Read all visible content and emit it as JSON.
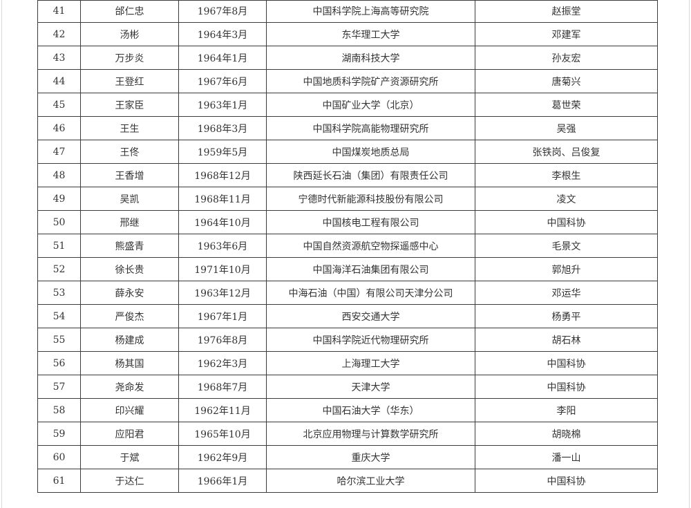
{
  "page": {
    "background": "#ffffff",
    "edge_line_color": "#d9d9d9"
  },
  "table": {
    "border_color": "#3b3b3b",
    "text_color": "#333333",
    "column_keys": [
      "no",
      "name",
      "birth-date",
      "work-unit",
      "nominator"
    ],
    "rows": [
      [
        "41",
        "邰仁忠",
        "1967年8月",
        "中国科学院上海高等研究院",
        "赵振堂"
      ],
      [
        "42",
        "汤彬",
        "1964年3月",
        "东华理工大学",
        "邓建军"
      ],
      [
        "43",
        "万步炎",
        "1964年1月",
        "湖南科技大学",
        "孙友宏"
      ],
      [
        "44",
        "王登红",
        "1967年6月",
        "中国地质科学院矿产资源研究所",
        "唐菊兴"
      ],
      [
        "45",
        "王家臣",
        "1963年1月",
        "中国矿业大学（北京）",
        "葛世荣"
      ],
      [
        "46",
        "王生",
        "1968年3月",
        "中国科学院高能物理研究所",
        "吴强"
      ],
      [
        "47",
        "王佟",
        "1959年5月",
        "中国煤炭地质总局",
        "张铁岗、吕俊复"
      ],
      [
        "48",
        "王香增",
        "1968年12月",
        "陕西延长石油（集团）有限责任公司",
        "李根生"
      ],
      [
        "49",
        "吴凯",
        "1968年11月",
        "宁德时代新能源科技股份有限公司",
        "凌文"
      ],
      [
        "50",
        "邢继",
        "1964年10月",
        "中国核电工程有限公司",
        "中国科协"
      ],
      [
        "51",
        "熊盛青",
        "1963年6月",
        "中国自然资源航空物探遥感中心",
        "毛景文"
      ],
      [
        "52",
        "徐长贵",
        "1971年10月",
        "中国海洋石油集团有限公司",
        "郭旭升"
      ],
      [
        "53",
        "薛永安",
        "1963年12月",
        "中海石油（中国）有限公司天津分公司",
        "邓运华"
      ],
      [
        "54",
        "严俊杰",
        "1967年1月",
        "西安交通大学",
        "杨勇平"
      ],
      [
        "55",
        "杨建成",
        "1976年8月",
        "中国科学院近代物理研究所",
        "胡石林"
      ],
      [
        "56",
        "杨其国",
        "1962年3月",
        "上海理工大学",
        "中国科协"
      ],
      [
        "57",
        "尧命发",
        "1968年7月",
        "天津大学",
        "中国科协"
      ],
      [
        "58",
        "印兴耀",
        "1962年11月",
        "中国石油大学（华东）",
        "李阳"
      ],
      [
        "59",
        "应阳君",
        "1965年10月",
        "北京应用物理与计算数学研究所",
        "胡晓棉"
      ],
      [
        "60",
        "于斌",
        "1962年9月",
        "重庆大学",
        "潘一山"
      ],
      [
        "61",
        "于达仁",
        "1966年1月",
        "哈尔滨工业大学",
        "中国科协"
      ]
    ]
  }
}
